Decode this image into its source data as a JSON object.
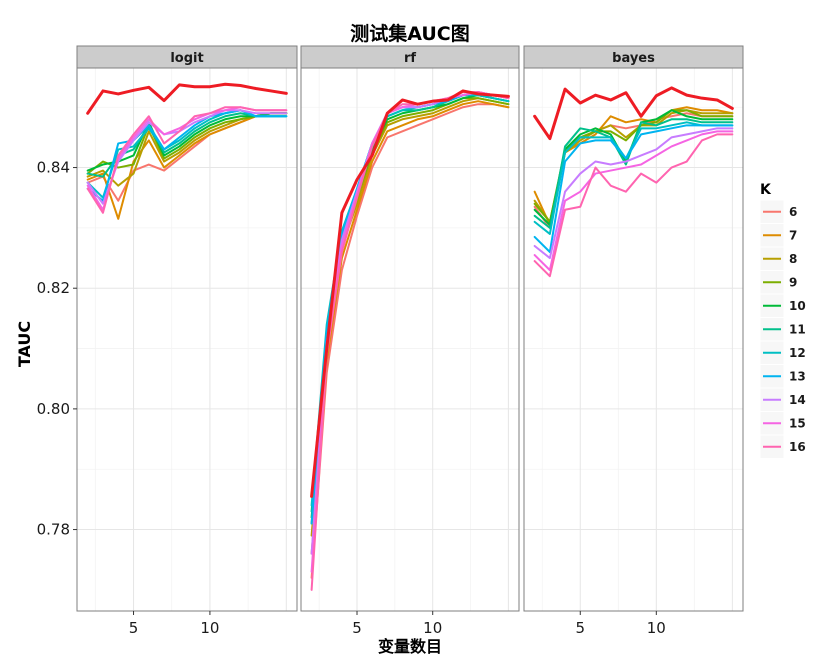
{
  "chart_data": {
    "type": "line",
    "title": "测试集AUC图",
    "xlabel": "变量数目",
    "ylabel": "TAUC",
    "legend_title": "K",
    "legend_position": "right",
    "grid": true,
    "facets": [
      "logit",
      "rf",
      "bayes"
    ],
    "x": [
      2,
      3,
      4,
      5,
      6,
      7,
      8,
      9,
      10,
      11,
      12,
      13,
      14,
      15
    ],
    "xlim": [
      1.3,
      15.7
    ],
    "ylim": [
      0.7665,
      0.8565
    ],
    "x_ticks": [
      5,
      10
    ],
    "y_ticks": [
      0.78,
      0.8,
      0.82,
      0.84
    ],
    "y_tick_labels": [
      "0.78",
      "0.80",
      "0.82",
      "0.84"
    ],
    "x_tick_labels": [
      "5",
      "10"
    ],
    "series_colors": {
      "6": "#F8766D",
      "7": "#DE8C00",
      "8": "#B79F00",
      "9": "#7CAE00",
      "10": "#00BA38",
      "11": "#00C08B",
      "12": "#00BFC4",
      "13": "#00B4F0",
      "14": "#C77CFF",
      "15": "#F564E3",
      "16": "#FF64B0",
      "highlight": "#EE1C24"
    },
    "panels": [
      {
        "name": "logit",
        "series": [
          {
            "name": "6",
            "values": [
              0.8375,
              0.8385,
              0.8345,
              0.8395,
              0.8405,
              0.8395,
              0.8415,
              0.8435,
              0.8455,
              0.8465,
              0.8475,
              0.8485,
              0.849,
              0.849
            ]
          },
          {
            "name": "7",
            "values": [
              0.838,
              0.839,
              0.8315,
              0.841,
              0.8445,
              0.84,
              0.842,
              0.844,
              0.8455,
              0.8465,
              0.8475,
              0.8485,
              0.849,
              0.849
            ]
          },
          {
            "name": "8",
            "values": [
              0.8385,
              0.8395,
              0.837,
              0.839,
              0.846,
              0.841,
              0.8425,
              0.8445,
              0.846,
              0.847,
              0.848,
              0.8485,
              0.849,
              0.849
            ]
          },
          {
            "name": "9",
            "values": [
              0.839,
              0.841,
              0.84,
              0.8405,
              0.847,
              0.8415,
              0.843,
              0.845,
              0.8465,
              0.8475,
              0.848,
              0.8485,
              0.849,
              0.849
            ]
          },
          {
            "name": "10",
            "values": [
              0.8395,
              0.8405,
              0.841,
              0.842,
              0.8475,
              0.842,
              0.8435,
              0.8455,
              0.847,
              0.848,
              0.8485,
              0.8485,
              0.849,
              0.849
            ]
          },
          {
            "name": "11",
            "values": [
              0.839,
              0.8385,
              0.842,
              0.843,
              0.847,
              0.8425,
              0.844,
              0.846,
              0.8475,
              0.8485,
              0.849,
              0.8485,
              0.8485,
              0.8485
            ]
          },
          {
            "name": "12",
            "values": [
              0.8375,
              0.835,
              0.843,
              0.8435,
              0.8465,
              0.843,
              0.8445,
              0.8465,
              0.848,
              0.849,
              0.8495,
              0.8485,
              0.8485,
              0.8485
            ]
          },
          {
            "name": "13",
            "values": [
              0.8365,
              0.8345,
              0.844,
              0.8445,
              0.847,
              0.843,
              0.845,
              0.847,
              0.8485,
              0.849,
              0.8495,
              0.8485,
              0.8485,
              0.8485
            ]
          },
          {
            "name": "14",
            "values": [
              0.8375,
              0.834,
              0.841,
              0.8445,
              0.8475,
              0.8455,
              0.846,
              0.8475,
              0.8485,
              0.8495,
              0.8495,
              0.849,
              0.849,
              0.849
            ]
          },
          {
            "name": "15",
            "values": [
              0.837,
              0.833,
              0.8415,
              0.845,
              0.848,
              0.8455,
              0.8465,
              0.848,
              0.849,
              0.8495,
              0.85,
              0.8495,
              0.8495,
              0.8495
            ]
          },
          {
            "name": "16",
            "values": [
              0.8365,
              0.8325,
              0.842,
              0.8455,
              0.8485,
              0.844,
              0.846,
              0.8485,
              0.849,
              0.85,
              0.85,
              0.8495,
              0.8495,
              0.8495
            ]
          },
          {
            "name": "highlight",
            "values": [
              0.849,
              0.8527,
              0.8522,
              0.8528,
              0.8533,
              0.8511,
              0.8537,
              0.8534,
              0.8534,
              0.8538,
              0.8536,
              0.8531,
              0.8527,
              0.8523
            ]
          }
        ]
      },
      {
        "name": "rf",
        "series": [
          {
            "name": "6",
            "values": [
              0.772,
              0.806,
              0.823,
              0.832,
              0.84,
              0.845,
              0.846,
              0.847,
              0.848,
              0.849,
              0.85,
              0.8505,
              0.8505,
              0.85
            ]
          },
          {
            "name": "7",
            "values": [
              0.776,
              0.808,
              0.825,
              0.833,
              0.841,
              0.846,
              0.847,
              0.848,
              0.8485,
              0.8495,
              0.8505,
              0.851,
              0.8505,
              0.85
            ]
          },
          {
            "name": "8",
            "values": [
              0.779,
              0.81,
              0.827,
              0.834,
              0.842,
              0.847,
              0.848,
              0.8485,
              0.849,
              0.85,
              0.851,
              0.8515,
              0.851,
              0.8505
            ]
          },
          {
            "name": "9",
            "values": [
              0.781,
              0.811,
              0.828,
              0.835,
              0.8425,
              0.8475,
              0.8485,
              0.849,
              0.8495,
              0.8505,
              0.8515,
              0.8515,
              0.851,
              0.8505
            ]
          },
          {
            "name": "10",
            "values": [
              0.782,
              0.812,
              0.8285,
              0.8355,
              0.843,
              0.848,
              0.849,
              0.8495,
              0.85,
              0.8505,
              0.8515,
              0.852,
              0.8515,
              0.851
            ]
          },
          {
            "name": "11",
            "values": [
              0.783,
              0.813,
              0.829,
              0.836,
              0.8435,
              0.8485,
              0.8495,
              0.8495,
              0.85,
              0.851,
              0.852,
              0.852,
              0.8515,
              0.851
            ]
          },
          {
            "name": "12",
            "values": [
              0.784,
              0.814,
              0.8295,
              0.8365,
              0.844,
              0.8485,
              0.8495,
              0.85,
              0.8505,
              0.851,
              0.852,
              0.852,
              0.8515,
              0.851
            ]
          },
          {
            "name": "13",
            "values": [
              0.781,
              0.813,
              0.829,
              0.8365,
              0.844,
              0.849,
              0.85,
              0.85,
              0.8505,
              0.851,
              0.852,
              0.8525,
              0.852,
              0.8515
            ]
          },
          {
            "name": "14",
            "values": [
              0.776,
              0.811,
              0.828,
              0.836,
              0.844,
              0.849,
              0.85,
              0.85,
              0.8505,
              0.8515,
              0.852,
              0.8525,
              0.852,
              0.8515
            ]
          },
          {
            "name": "15",
            "values": [
              0.773,
              0.81,
              0.827,
              0.8355,
              0.844,
              0.849,
              0.85,
              0.8505,
              0.851,
              0.8515,
              0.852,
              0.8525,
              0.852,
              0.8515
            ]
          },
          {
            "name": "16",
            "values": [
              0.77,
              0.809,
              0.826,
              0.835,
              0.8435,
              0.849,
              0.8505,
              0.8505,
              0.851,
              0.8515,
              0.8525,
              0.8525,
              0.852,
              0.8515
            ]
          },
          {
            "name": "highlight",
            "values": [
              0.7855,
              0.81,
              0.8325,
              0.838,
              0.842,
              0.849,
              0.8512,
              0.8505,
              0.851,
              0.8512,
              0.8527,
              0.8522,
              0.852,
              0.8518
            ]
          }
        ]
      },
      {
        "name": "bayes",
        "series": [
          {
            "name": "6",
            "values": [
              0.8335,
              0.83,
              0.843,
              0.845,
              0.846,
              0.847,
              0.8465,
              0.847,
              0.848,
              0.8485,
              0.849,
              0.8485,
              0.8485,
              0.8485
            ]
          },
          {
            "name": "7",
            "values": [
              0.836,
              0.8305,
              0.8425,
              0.844,
              0.8455,
              0.8485,
              0.8475,
              0.848,
              0.8475,
              0.8495,
              0.85,
              0.8495,
              0.8495,
              0.849
            ]
          },
          {
            "name": "8",
            "values": [
              0.8345,
              0.831,
              0.8425,
              0.8445,
              0.846,
              0.847,
              0.845,
              0.847,
              0.847,
              0.849,
              0.8495,
              0.849,
              0.849,
              0.849
            ]
          },
          {
            "name": "9",
            "values": [
              0.834,
              0.831,
              0.843,
              0.845,
              0.846,
              0.846,
              0.8445,
              0.847,
              0.8475,
              0.8495,
              0.8495,
              0.8485,
              0.8485,
              0.8485
            ]
          },
          {
            "name": "10",
            "values": [
              0.833,
              0.8305,
              0.843,
              0.8455,
              0.8465,
              0.8455,
              0.841,
              0.8475,
              0.848,
              0.8495,
              0.8485,
              0.848,
              0.848,
              0.848
            ]
          },
          {
            "name": "11",
            "values": [
              0.832,
              0.83,
              0.8435,
              0.8465,
              0.846,
              0.845,
              0.8405,
              0.8475,
              0.847,
              0.848,
              0.848,
              0.8475,
              0.8475,
              0.8475
            ]
          },
          {
            "name": "12",
            "values": [
              0.831,
              0.829,
              0.8425,
              0.845,
              0.845,
              0.845,
              0.8415,
              0.8465,
              0.8465,
              0.847,
              0.8475,
              0.847,
              0.847,
              0.847
            ]
          },
          {
            "name": "13",
            "values": [
              0.8285,
              0.826,
              0.841,
              0.844,
              0.8445,
              0.8445,
              0.8415,
              0.8455,
              0.846,
              0.8465,
              0.847,
              0.847,
              0.847,
              0.847
            ]
          },
          {
            "name": "14",
            "values": [
              0.827,
              0.825,
              0.836,
              0.839,
              0.841,
              0.8405,
              0.841,
              0.842,
              0.843,
              0.845,
              0.8455,
              0.846,
              0.8465,
              0.8465
            ]
          },
          {
            "name": "15",
            "values": [
              0.8255,
              0.823,
              0.8345,
              0.836,
              0.839,
              0.8395,
              0.84,
              0.8405,
              0.842,
              0.8435,
              0.8445,
              0.8455,
              0.846,
              0.846
            ]
          },
          {
            "name": "16",
            "values": [
              0.8245,
              0.822,
              0.833,
              0.8335,
              0.84,
              0.837,
              0.836,
              0.839,
              0.8375,
              0.84,
              0.841,
              0.8445,
              0.8455,
              0.8455
            ]
          },
          {
            "name": "highlight",
            "values": [
              0.8485,
              0.8448,
              0.853,
              0.8507,
              0.852,
              0.8512,
              0.8524,
              0.8485,
              0.8519,
              0.8532,
              0.852,
              0.8515,
              0.8512,
              0.8498
            ]
          }
        ]
      }
    ]
  }
}
